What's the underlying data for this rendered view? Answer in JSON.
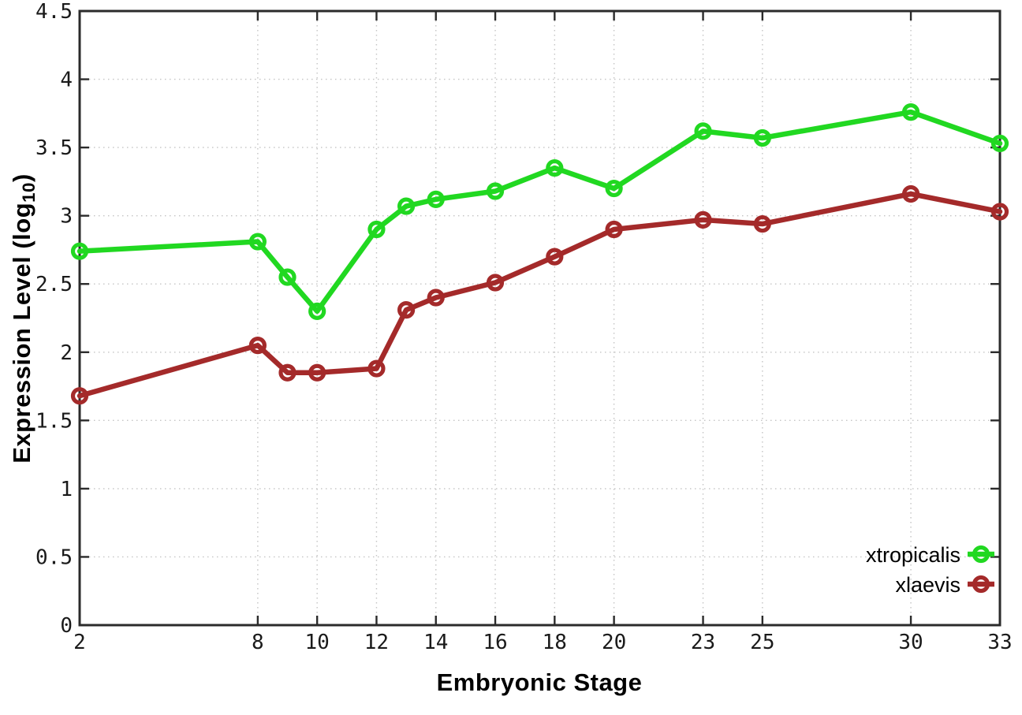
{
  "figure": {
    "background": "#ffffff",
    "x_axis_title": "Embryonic Stage",
    "y_axis_title_pre": "Expression Level (log",
    "y_axis_title_sub": "10",
    "y_axis_title_post": ")"
  },
  "chart_data": {
    "type": "line",
    "title": "",
    "xlabel": "Embryonic Stage",
    "ylabel": "Expression Level (log10)",
    "xlim": [
      2,
      33
    ],
    "ylim": [
      0,
      4.5
    ],
    "grid": true,
    "grid_color": "#c4c4c4",
    "border_color": "#2b2b2b",
    "tick_label_color": "#1a1a1a",
    "legend_position": "bottom-right-inside",
    "x_ticks": [
      2,
      8,
      10,
      12,
      14,
      16,
      18,
      20,
      23,
      25,
      30,
      33
    ],
    "y_ticks": [
      0,
      0.5,
      1,
      1.5,
      2,
      2.5,
      3,
      3.5,
      4,
      4.5
    ],
    "x": [
      2,
      8,
      9,
      10,
      12,
      13,
      14,
      16,
      18,
      20,
      23,
      25,
      30,
      33
    ],
    "series": [
      {
        "name": "xtropicalis",
        "color": "#21d821",
        "marker": "open-circle",
        "values": [
          2.74,
          2.81,
          2.55,
          2.3,
          2.9,
          3.07,
          3.12,
          3.18,
          3.35,
          3.2,
          3.62,
          3.57,
          3.76,
          3.53
        ]
      },
      {
        "name": "xlaevis",
        "color": "#a42a2a",
        "marker": "open-circle",
        "values": [
          1.68,
          2.05,
          1.85,
          1.85,
          1.88,
          2.31,
          2.4,
          2.51,
          2.7,
          2.9,
          2.97,
          2.94,
          3.16,
          3.03
        ]
      }
    ]
  }
}
